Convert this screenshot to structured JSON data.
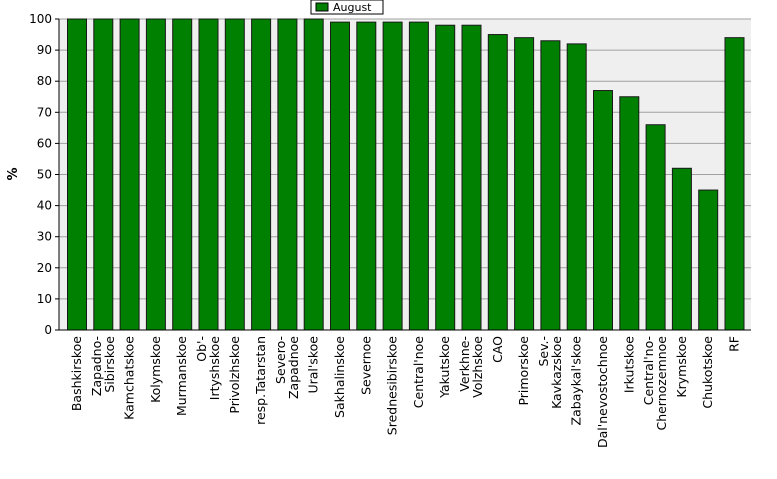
{
  "chart_data": {
    "type": "bar",
    "ylabel": "%",
    "xlabel": "",
    "ylim": [
      0,
      100
    ],
    "yticks": [
      0,
      10,
      20,
      30,
      40,
      50,
      60,
      70,
      80,
      90,
      100
    ],
    "grid": "horizontal",
    "legend_position": "top-center",
    "categories": [
      "Bashkirskoe",
      "Zapadno-\nSibirskoe",
      "Kamchatskoe",
      "Kolymskoe",
      "Murmanskoe",
      "Ob'-\nIrtyshskoe",
      "Privolzhskoe",
      "resp.Tatarstan",
      "Severo-\nZapadnoe",
      "Ural'skoe",
      "Sakhalinskoe",
      "Severnoe",
      "Srednesibirskoe",
      "Central'noe",
      "Yakutskoe",
      "Verkhne-\nVolzhskoe",
      "CAO",
      "Primorskoe",
      "Sev.-\nKavkazskoe",
      "Zabaykal'skoe",
      "Dal'nevostochnoe",
      "Irkutskoe",
      "Central'no-\nChernozemnoe",
      "Krymskoe",
      "Chukotskoe",
      "RF"
    ],
    "series": [
      {
        "name": "August",
        "color": "#008000",
        "values": [
          100,
          100,
          100,
          100,
          100,
          100,
          100,
          100,
          100,
          100,
          99,
          99,
          99,
          99,
          98,
          98,
          95,
          94,
          93,
          92,
          77,
          75,
          66,
          52,
          45,
          94
        ]
      }
    ]
  },
  "colors": {
    "plot_background": "#efefef",
    "bar_fill": "#008000",
    "bar_stroke": "#1a1a1a",
    "grid": "#a0a0a0"
  }
}
